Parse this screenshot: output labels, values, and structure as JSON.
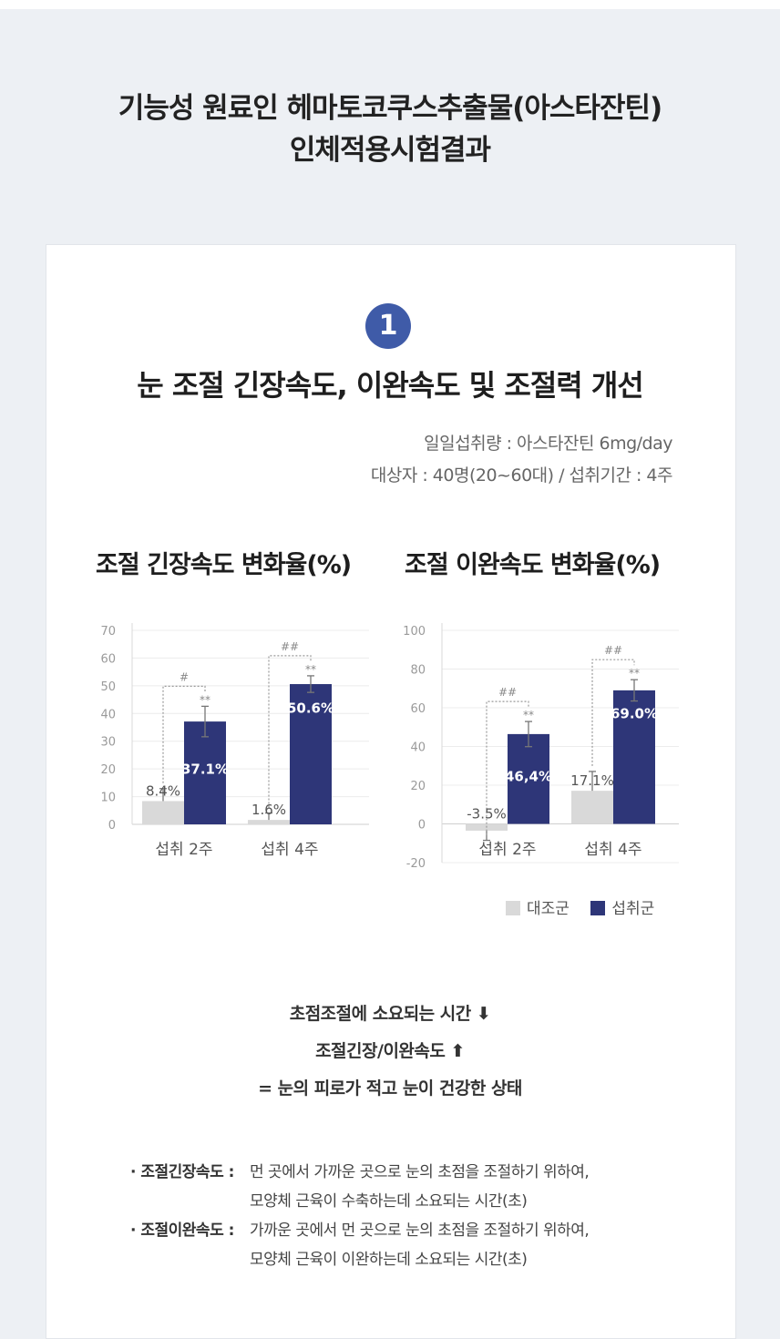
{
  "header": {
    "title_line1": "기능성 원료인 헤마토코쿠스추출물(아스타잔틴)",
    "title_line2": "인체적용시험결과"
  },
  "section": {
    "number": "1",
    "title": "눈 조절 긴장속도, 이완속도 및 조절력 개선",
    "intake": "일일섭취량 : 아스타잔틴 6mg/day",
    "subjects": "대상자 : 40명(20~60대) / 섭취기간 : 4주"
  },
  "colors": {
    "control": "#d9d9d9",
    "intake": "#2e3678",
    "badge": "#3f5ba8",
    "background": "#edf0f4"
  },
  "chart_data": [
    {
      "type": "bar",
      "title": "조절 긴장속도 변화율(%)",
      "categories": [
        "섭취 2주",
        "섭취 4주"
      ],
      "ylim": [
        0,
        70
      ],
      "yticks": [
        "0",
        "10",
        "20",
        "30",
        "40",
        "50",
        "60",
        "70"
      ],
      "series": [
        {
          "name": "대조군",
          "values": [
            8.4,
            1.6
          ],
          "labels": [
            "8.4%",
            "1.6%"
          ],
          "errors": [
            4.5,
            2.5
          ]
        },
        {
          "name": "섭취군",
          "values": [
            37.1,
            50.6
          ],
          "labels": [
            "37.1%",
            "50.6%"
          ],
          "errors": [
            5.5,
            3.0
          ],
          "stars": [
            "**",
            "**"
          ]
        }
      ],
      "comparisons": [
        "#",
        "##"
      ],
      "grid": true
    },
    {
      "type": "bar",
      "title": "조절 이완속도 변화율(%)",
      "categories": [
        "섭취 2주",
        "섭취 4주"
      ],
      "ylim": [
        -20,
        100
      ],
      "yticks": [
        "-20",
        "0",
        "20",
        "40",
        "60",
        "80",
        "100"
      ],
      "series": [
        {
          "name": "대조군",
          "values": [
            -3.5,
            17.1
          ],
          "labels": [
            "-3.5%",
            "17.1%"
          ],
          "errors": [
            5.0,
            10.0
          ]
        },
        {
          "name": "섭취군",
          "values": [
            46.4,
            69.0
          ],
          "labels": [
            "46,4%",
            "69.0%"
          ],
          "errors": [
            6.5,
            5.5
          ],
          "stars": [
            "**",
            "**"
          ]
        }
      ],
      "comparisons": [
        "##",
        "##"
      ],
      "grid": true
    }
  ],
  "legend": {
    "control": "대조군",
    "intake": "섭취군"
  },
  "summary": {
    "line1": "초점조절에 소요되는 시간 ⬇",
    "line2": "조절긴장/이완속도 ⬆",
    "line3": "= 눈의 피로가 적고 눈이 건강한 상태"
  },
  "definitions": [
    {
      "term": "· 조절긴장속도 :",
      "line1": "먼 곳에서 가까운 곳으로 눈의 초점을 조절하기 위하여,",
      "line2": "모양체 근육이 수축하는데 소요되는 시간(초)"
    },
    {
      "term": "· 조절이완속도 :",
      "line1": "가까운 곳에서 먼 곳으로 눈의 초점을 조절하기 위하여,",
      "line2": "모양체 근육이 이완하는데 소요되는 시간(초)"
    }
  ]
}
